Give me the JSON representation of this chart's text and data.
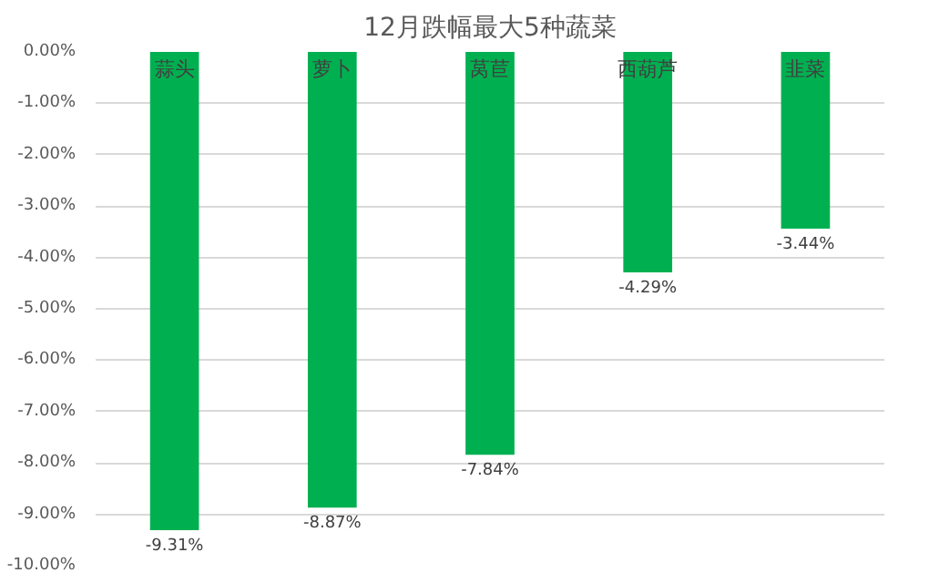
{
  "chart_data": {
    "type": "bar",
    "title": "12月跌幅最大5种蔬菜",
    "categories": [
      "蒜头",
      "萝卜",
      "莴苣",
      "西葫芦",
      "韭菜"
    ],
    "values": [
      -9.31,
      -8.87,
      -7.84,
      -4.29,
      -3.44
    ],
    "value_labels": [
      "-9.31%",
      "-8.87%",
      "-7.84%",
      "-4.29%",
      "-3.44%"
    ],
    "color": "#00b050",
    "ylim": [
      -10,
      0
    ],
    "yticks": [
      {
        "value": 0,
        "label": "0.00%"
      },
      {
        "value": -1,
        "label": "-1.00%"
      },
      {
        "value": -2,
        "label": "-2.00%"
      },
      {
        "value": -3,
        "label": "-3.00%"
      },
      {
        "value": -4,
        "label": "-4.00%"
      },
      {
        "value": -5,
        "label": "-5.00%"
      },
      {
        "value": -6,
        "label": "-6.00%"
      },
      {
        "value": -7,
        "label": "-7.00%"
      },
      {
        "value": -8,
        "label": "-8.00%"
      },
      {
        "value": -9,
        "label": "-9.00%"
      },
      {
        "value": -10,
        "label": "-10.00%"
      }
    ],
    "grid": "y"
  }
}
